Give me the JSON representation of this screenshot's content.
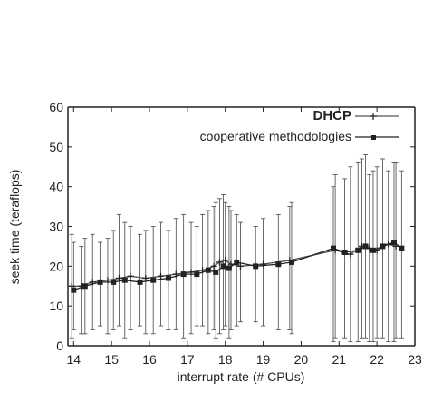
{
  "chart_data": {
    "type": "line",
    "xlabel": "interrupt rate (# CPUs)",
    "ylabel": "seek time (teraflops)",
    "xlim": [
      13.85,
      23
    ],
    "ylim": [
      0,
      60
    ],
    "xticks": [
      14,
      15,
      16,
      17,
      18,
      19,
      20,
      21,
      22,
      23
    ],
    "yticks": [
      0,
      10,
      20,
      30,
      40,
      50,
      60
    ],
    "legend_position": "top-right",
    "grid": false,
    "series": [
      {
        "name": "DHCP",
        "marker": "plus",
        "points": [
          {
            "x": 13.95,
            "y": 15,
            "low": 2,
            "high": 28
          },
          {
            "x": 14.2,
            "y": 15,
            "low": 3,
            "high": 25
          },
          {
            "x": 14.5,
            "y": 16,
            "low": 4,
            "high": 28
          },
          {
            "x": 14.9,
            "y": 16.5,
            "low": 3,
            "high": 27
          },
          {
            "x": 15.2,
            "y": 17,
            "low": 5,
            "high": 33
          },
          {
            "x": 15.5,
            "y": 17.5,
            "low": 4,
            "high": 30
          },
          {
            "x": 15.9,
            "y": 17,
            "low": 3,
            "high": 29
          },
          {
            "x": 16.3,
            "y": 17.5,
            "low": 5,
            "high": 31
          },
          {
            "x": 16.7,
            "y": 18,
            "low": 4,
            "high": 32
          },
          {
            "x": 17.1,
            "y": 18.5,
            "low": 3,
            "high": 31
          },
          {
            "x": 17.4,
            "y": 19,
            "low": 5,
            "high": 33
          },
          {
            "x": 17.7,
            "y": 20,
            "low": 4,
            "high": 35
          },
          {
            "x": 17.85,
            "y": 21,
            "low": 3,
            "high": 37
          },
          {
            "x": 18.0,
            "y": 21.5,
            "low": 5,
            "high": 36
          },
          {
            "x": 18.15,
            "y": 20.5,
            "low": 4,
            "high": 34
          },
          {
            "x": 18.4,
            "y": 20,
            "low": 6,
            "high": 31
          },
          {
            "x": 19.0,
            "y": 20.5,
            "low": 5,
            "high": 32
          },
          {
            "x": 19.7,
            "y": 21.5,
            "low": 4,
            "high": 35
          },
          {
            "x": 20.9,
            "y": 24,
            "low": 2,
            "high": 43
          },
          {
            "x": 21.3,
            "y": 23,
            "low": 1,
            "high": 45
          },
          {
            "x": 21.6,
            "y": 25,
            "low": 2,
            "high": 47
          },
          {
            "x": 21.8,
            "y": 24.5,
            "low": 1,
            "high": 43
          },
          {
            "x": 22.0,
            "y": 24,
            "low": 2,
            "high": 45
          },
          {
            "x": 22.3,
            "y": 25.5,
            "low": 1,
            "high": 44
          },
          {
            "x": 22.5,
            "y": 25,
            "low": 2,
            "high": 46
          }
        ]
      },
      {
        "name": "cooperative methodologies",
        "marker": "square",
        "points": [
          {
            "x": 14.0,
            "y": 14,
            "low": 4,
            "high": 26
          },
          {
            "x": 14.3,
            "y": 15,
            "low": 3,
            "high": 27
          },
          {
            "x": 14.7,
            "y": 16,
            "low": 5,
            "high": 26
          },
          {
            "x": 15.05,
            "y": 16,
            "low": 4,
            "high": 29
          },
          {
            "x": 15.35,
            "y": 16.5,
            "low": 2,
            "high": 31
          },
          {
            "x": 15.75,
            "y": 16,
            "low": 5,
            "high": 28
          },
          {
            "x": 16.1,
            "y": 16.5,
            "low": 3,
            "high": 30
          },
          {
            "x": 16.5,
            "y": 17,
            "low": 4,
            "high": 29
          },
          {
            "x": 16.9,
            "y": 18,
            "low": 2,
            "high": 33
          },
          {
            "x": 17.25,
            "y": 18,
            "low": 5,
            "high": 30
          },
          {
            "x": 17.55,
            "y": 19,
            "low": 3,
            "high": 34
          },
          {
            "x": 17.75,
            "y": 18.5,
            "low": 2,
            "high": 36
          },
          {
            "x": 17.95,
            "y": 20,
            "low": 4,
            "high": 38
          },
          {
            "x": 18.1,
            "y": 19.5,
            "low": 2,
            "high": 35
          },
          {
            "x": 18.3,
            "y": 21,
            "low": 5,
            "high": 33
          },
          {
            "x": 18.8,
            "y": 20,
            "low": 6,
            "high": 30
          },
          {
            "x": 19.4,
            "y": 20.5,
            "low": 4,
            "high": 33
          },
          {
            "x": 19.75,
            "y": 21,
            "low": 3,
            "high": 36
          },
          {
            "x": 20.85,
            "y": 24.5,
            "low": 1,
            "high": 40
          },
          {
            "x": 21.15,
            "y": 23.5,
            "low": 2,
            "high": 42
          },
          {
            "x": 21.5,
            "y": 24,
            "low": 1,
            "high": 46
          },
          {
            "x": 21.7,
            "y": 25,
            "low": 2,
            "high": 48
          },
          {
            "x": 21.9,
            "y": 24,
            "low": 1,
            "high": 44
          },
          {
            "x": 22.15,
            "y": 25,
            "low": 2,
            "high": 47
          },
          {
            "x": 22.45,
            "y": 26,
            "low": 1,
            "high": 46
          },
          {
            "x": 22.65,
            "y": 24.5,
            "low": 2,
            "high": 44
          }
        ]
      }
    ]
  }
}
